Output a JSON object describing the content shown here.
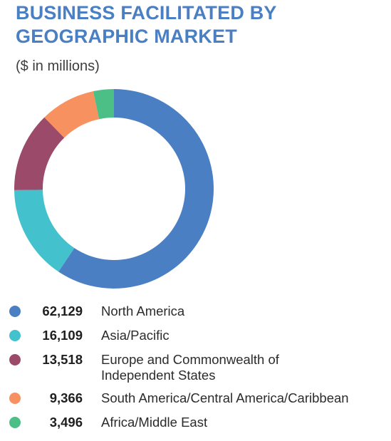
{
  "title_line1": "BUSINESS FACILITATED BY",
  "title_line2": "GEOGRAPHIC MARKET",
  "subtitle": "($ in millions)",
  "chart_data": {
    "type": "pie",
    "donut": true,
    "title": "BUSINESS FACILITATED BY GEOGRAPHIC MARKET",
    "subtitle": "($ in millions)",
    "legend_position": "bottom",
    "categories": [
      "North America",
      "Asia/Pacific",
      "Europe and Commonwealth of Independent States",
      "South America/Central America/Caribbean",
      "Africa/Middle East"
    ],
    "values": [
      62129,
      16109,
      13518,
      9366,
      3496
    ],
    "value_labels": [
      "62,129",
      "16,109",
      "13,518",
      "9,366",
      "3,496"
    ],
    "label_lines": [
      [
        "North America"
      ],
      [
        "Asia/Pacific"
      ],
      [
        "Europe and Commonwealth of",
        "Independent States"
      ],
      [
        "South America/Central America/Caribbean"
      ],
      [
        "Africa/Middle East"
      ]
    ],
    "colors": [
      "#4a7fc3",
      "#43c1cc",
      "#9c4a6a",
      "#f7915f",
      "#4cbf87"
    ]
  }
}
